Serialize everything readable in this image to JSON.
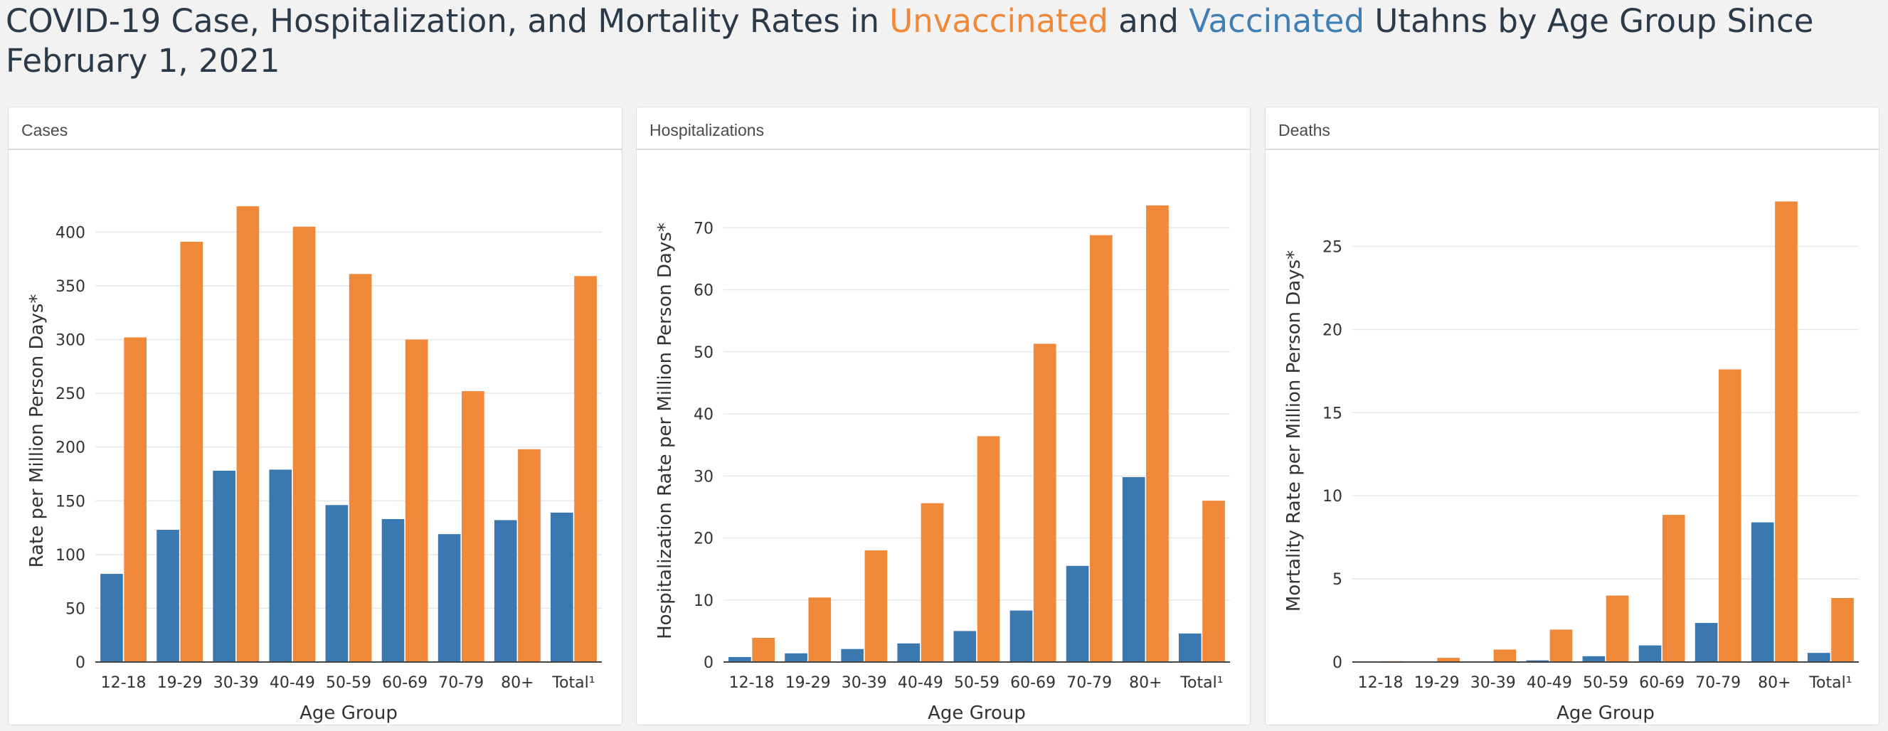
{
  "title": {
    "part1": "COVID-19 Case, Hospitalization, and Mortality Rates in ",
    "unvaccinated": "Unvaccinated",
    "part2": " and ",
    "vaccinated": "Vaccinated",
    "part3": " Utahns by Age Group Since February 1, 2021"
  },
  "colors": {
    "unvaccinated": "#f0883a",
    "vaccinated": "#3a78b0",
    "grid": "#e8e8e8"
  },
  "chart_data": [
    {
      "type": "bar",
      "panel_title": "Cases",
      "xlabel": "Age Group",
      "ylabel": "Rate per Million Person Days*",
      "categories": [
        "12-18",
        "19-29",
        "30-39",
        "40-49",
        "50-59",
        "60-69",
        "70-79",
        "80+",
        "Total¹"
      ],
      "ylim": [
        0,
        430
      ],
      "yticks": [
        0,
        50,
        100,
        150,
        200,
        250,
        300,
        350,
        400
      ],
      "grid": true,
      "series": [
        {
          "key": "vaccinated",
          "values": [
            82,
            123,
            178,
            179,
            146,
            133,
            119,
            132,
            139
          ]
        },
        {
          "key": "unvaccinated",
          "values": [
            302,
            391,
            424,
            405,
            361,
            300,
            252,
            198,
            359
          ]
        }
      ]
    },
    {
      "type": "bar",
      "panel_title": "Hospitalizations",
      "xlabel": "Age Group",
      "ylabel": "Hospitalization Rate per Million Person Days*",
      "categories": [
        "12-18",
        "19-29",
        "30-39",
        "40-49",
        "50-59",
        "60-69",
        "70-79",
        "80+",
        "Total¹"
      ],
      "ylim": [
        0,
        74.5
      ],
      "yticks": [
        0,
        10,
        20,
        30,
        40,
        50,
        60,
        70
      ],
      "grid": true,
      "series": [
        {
          "key": "vaccinated",
          "values": [
            0.8,
            1.4,
            2.1,
            3.0,
            5.0,
            8.3,
            15.5,
            29.8,
            4.6
          ]
        },
        {
          "key": "unvaccinated",
          "values": [
            3.9,
            10.4,
            18.0,
            25.6,
            36.4,
            51.3,
            68.8,
            73.6,
            26.0
          ]
        }
      ]
    },
    {
      "type": "bar",
      "panel_title": "Deaths",
      "xlabel": "Age Group",
      "ylabel": "Mortality Rate per Million Person Days*",
      "categories": [
        "12-18",
        "19-29",
        "30-39",
        "40-49",
        "50-59",
        "60-69",
        "70-79",
        "80+",
        "Total¹"
      ],
      "ylim": [
        0,
        27.8
      ],
      "yticks": [
        0,
        5,
        10,
        15,
        20,
        25
      ],
      "grid": true,
      "series": [
        {
          "key": "vaccinated",
          "values": [
            0.0,
            0.0,
            0.02,
            0.1,
            0.35,
            1.0,
            2.35,
            8.4,
            0.55
          ]
        },
        {
          "key": "unvaccinated",
          "values": [
            0.05,
            0.25,
            0.75,
            1.95,
            4.0,
            8.85,
            17.6,
            27.7,
            3.85
          ]
        }
      ]
    }
  ]
}
